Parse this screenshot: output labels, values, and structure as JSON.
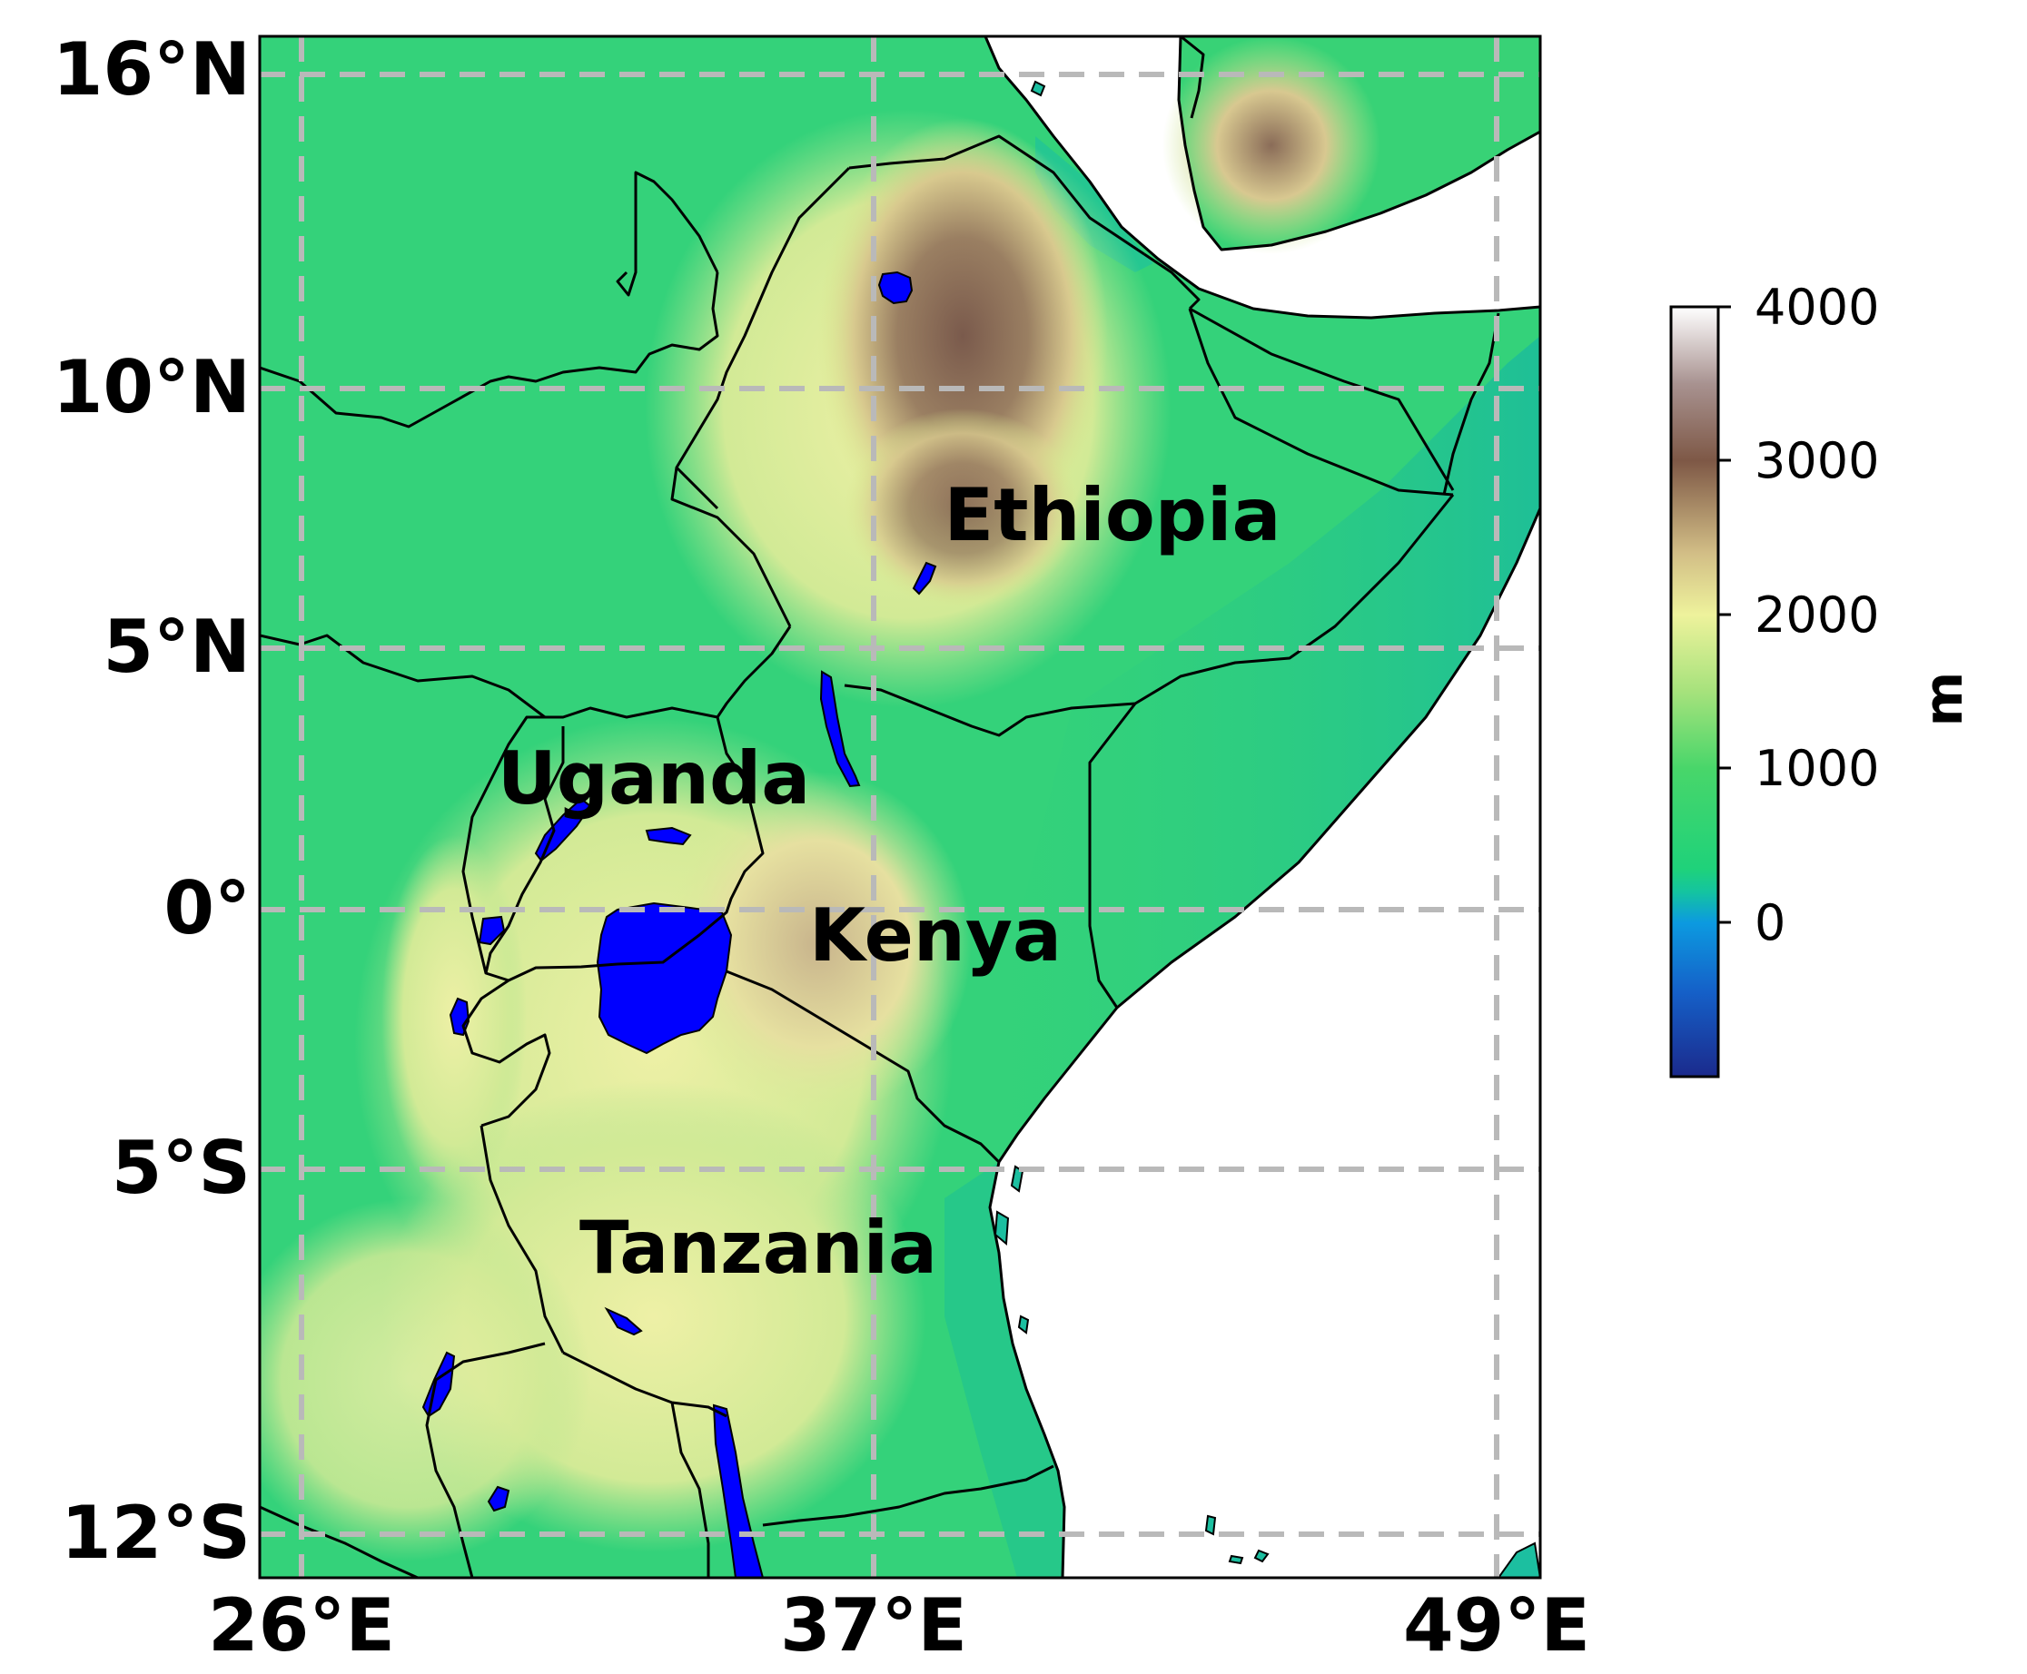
{
  "map": {
    "lat_ticks": [
      "16°N",
      "10°N",
      "5°N",
      "0°",
      "5°S",
      "12°S"
    ],
    "lon_ticks": [
      "26°E",
      "37°E",
      "49°E"
    ],
    "country_labels": [
      "Ethiopia",
      "Uganda",
      "Kenya",
      "Tanzania"
    ],
    "gridlines": true,
    "gridline_style": "dashed"
  },
  "colorbar": {
    "ticks": [
      "4000",
      "3000",
      "2000",
      "1000",
      "0"
    ],
    "unit": "m",
    "colormap_colors": [
      "#1b2a8c",
      "#0c8ee0",
      "#1fcf82",
      "#23d26a",
      "#9be06a",
      "#f2f29a",
      "#c8b07a",
      "#6e4a3a",
      "#a08b88",
      "#ffffff"
    ]
  },
  "colors": {
    "lakes": "#0000ff",
    "ocean": "#ffffff",
    "borders": "#000000",
    "grid": "#b9b9b9"
  }
}
